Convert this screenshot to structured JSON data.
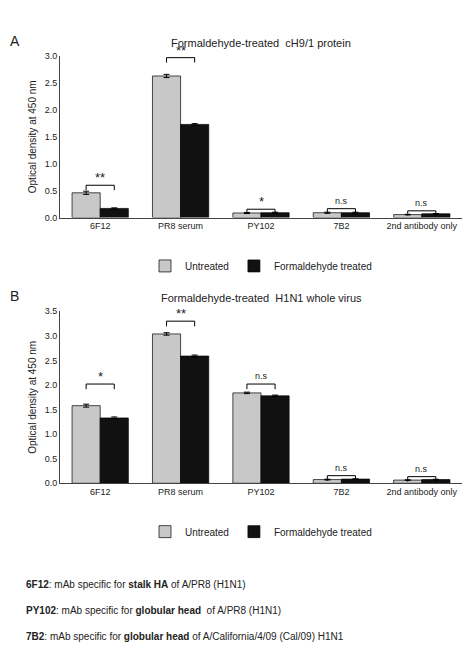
{
  "chart_data": [
    {
      "type": "bar",
      "panel_label": "A",
      "title": "Formaldehyde-treated  cH9/1 protein",
      "categories": [
        "6F12",
        "PR8 serum",
        "PY102",
        "7B2",
        "2nd antibody only"
      ],
      "series": [
        {
          "name": "Untreated",
          "color": "#c8c8c8",
          "values": [
            0.46,
            2.63,
            0.085,
            0.09,
            0.055
          ],
          "errors": [
            0.03,
            0.03,
            0.01,
            0.01,
            0.005
          ]
        },
        {
          "name": "Formaldehyde treated",
          "color": "#111111",
          "values": [
            0.17,
            1.73,
            0.09,
            0.09,
            0.07
          ],
          "errors": [
            0.01,
            0.015,
            0.01,
            0.01,
            0.005
          ]
        }
      ],
      "y_label": "Optical density at 450 nm",
      "ylim": [
        0,
        3.0
      ],
      "yticks": [
        {
          "value": 0,
          "label": "0.0"
        },
        0.5,
        {
          "value": 1,
          "label": "1.0"
        },
        1.5,
        {
          "value": 2,
          "label": "2.0"
        },
        2.5,
        {
          "value": 3,
          "label": "3.0"
        }
      ],
      "annotations": [
        {
          "category": "6F12",
          "y": 0.6,
          "text": "**"
        },
        {
          "category": "PR8 serum",
          "y": 2.97,
          "text": "**"
        },
        {
          "category": "PY102",
          "y": 0.155,
          "text": "*"
        },
        {
          "category": "7B2",
          "y": 0.165,
          "text": "n.s"
        },
        {
          "category": "2nd antibody only",
          "y": 0.125,
          "text": "n.s"
        }
      ],
      "grid": false,
      "legend": "bottom"
    },
    {
      "type": "bar",
      "panel_label": "B",
      "title": "Formaldehyde-treated  H1N1 whole virus",
      "categories": [
        "6F12",
        "PR8 serum",
        "PY102",
        "7B2",
        "2nd antibody only"
      ],
      "series": [
        {
          "name": "Untreated",
          "color": "#c8c8c8",
          "values": [
            1.58,
            3.04,
            1.84,
            0.075,
            0.065
          ],
          "errors": [
            0.03,
            0.025,
            0.015,
            0.008,
            0.006
          ]
        },
        {
          "name": "Formaldehyde treated",
          "color": "#111111",
          "values": [
            1.33,
            2.59,
            1.78,
            0.085,
            0.075
          ],
          "errors": [
            0.02,
            0.02,
            0.015,
            0.007,
            0.006
          ]
        }
      ],
      "y_label": "Optical density at 450 nm",
      "ylim": [
        0,
        3.5
      ],
      "yticks": [
        {
          "value": 0,
          "label": "0.0"
        },
        0.5,
        {
          "value": 1,
          "label": "1.0"
        },
        1.5,
        {
          "value": 2,
          "label": "2.0"
        },
        2.5,
        {
          "value": 3,
          "label": "3.0"
        },
        3.5
      ],
      "annotations": [
        {
          "category": "6F12",
          "y": 2.02,
          "text": "*"
        },
        {
          "category": "PR8 serum",
          "y": 3.3,
          "text": "**"
        },
        {
          "category": "PY102",
          "y": 2.02,
          "text": "n.s"
        },
        {
          "category": "7B2",
          "y": 0.155,
          "text": "n.s"
        },
        {
          "category": "2nd antibody only",
          "y": 0.135,
          "text": "n.s"
        }
      ],
      "grid": false,
      "legend": "bottom"
    }
  ],
  "footnotes": [
    [
      "6F12",
      ": mAb specific for ",
      "stalk HA",
      " of A/PR8 (H1N1)"
    ],
    [
      "PY102",
      ": mAb specific for ",
      "globular head",
      "  of A/PR8 (H1N1)"
    ],
    [
      "7B2",
      ": mAb specific for ",
      "globular head",
      " of A/California/4/09 (Cal/09) H1N1"
    ]
  ]
}
